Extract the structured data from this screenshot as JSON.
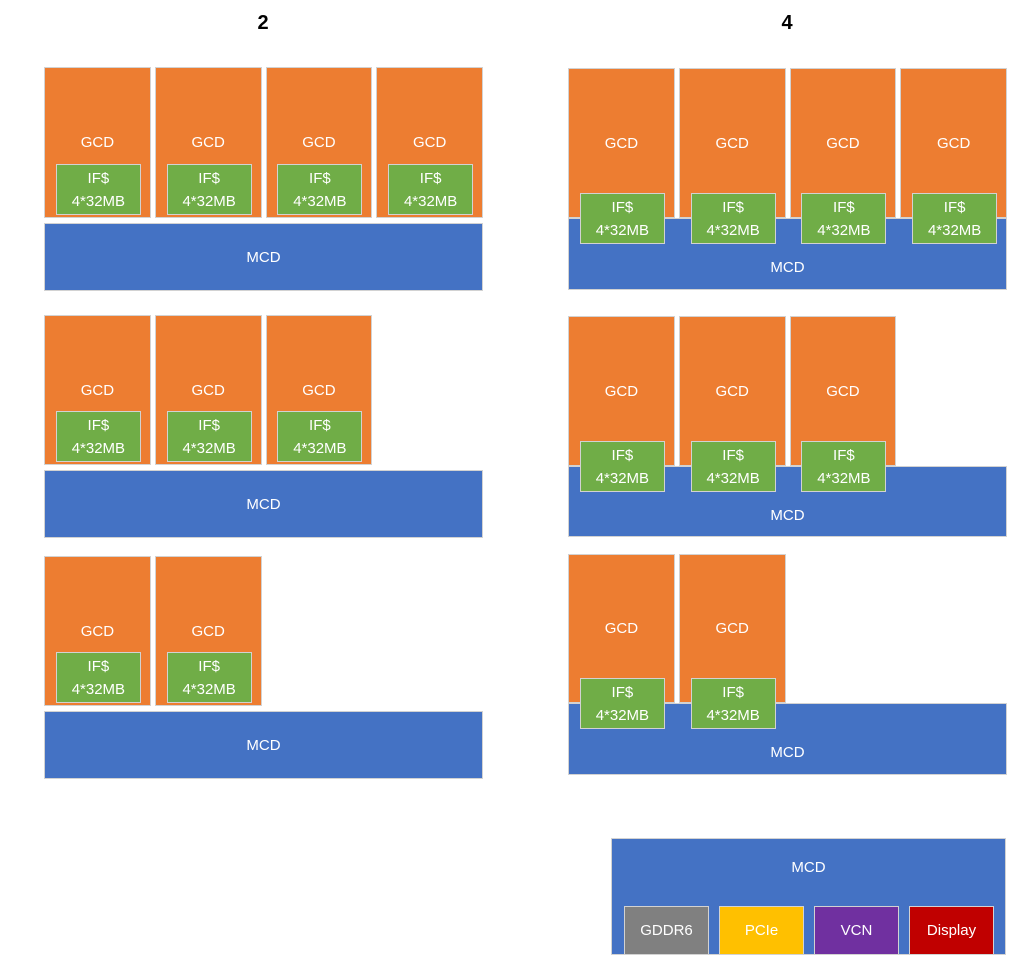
{
  "diagram": {
    "left_column": {
      "header": "2",
      "ifs_placement": "inside-gcd",
      "rows": [
        {
          "gcd_count": 4
        },
        {
          "gcd_count": 3
        },
        {
          "gcd_count": 2
        }
      ]
    },
    "right_column": {
      "header": "4",
      "ifs_placement": "straddle-gcd-and-mcd",
      "rows": [
        {
          "gcd_count": 4
        },
        {
          "gcd_count": 3
        },
        {
          "gcd_count": 2
        }
      ],
      "io_mcd": {
        "label": "MCD"
      }
    }
  },
  "labels": {
    "gcd": "GCD",
    "ifs_line1": "IF$",
    "ifs_line2": "4*32MB",
    "mcd": "MCD"
  },
  "io_blocks": [
    {
      "name": "gddr6",
      "label": "GDDR6",
      "color": "#808080"
    },
    {
      "name": "pcie",
      "label": "PCIe",
      "color": "#FFC000"
    },
    {
      "name": "vcn",
      "label": "VCN",
      "color": "#7030A0"
    },
    {
      "name": "display",
      "label": "Display",
      "color": "#C00000"
    }
  ],
  "colors": {
    "gcd": "#ED7D31",
    "ifs": "#70AD47",
    "mcd": "#4472C4",
    "block_text": "#FFFFFF",
    "header_text": "#000000",
    "border": "#D2D2D2",
    "background": "#FFFFFF"
  }
}
